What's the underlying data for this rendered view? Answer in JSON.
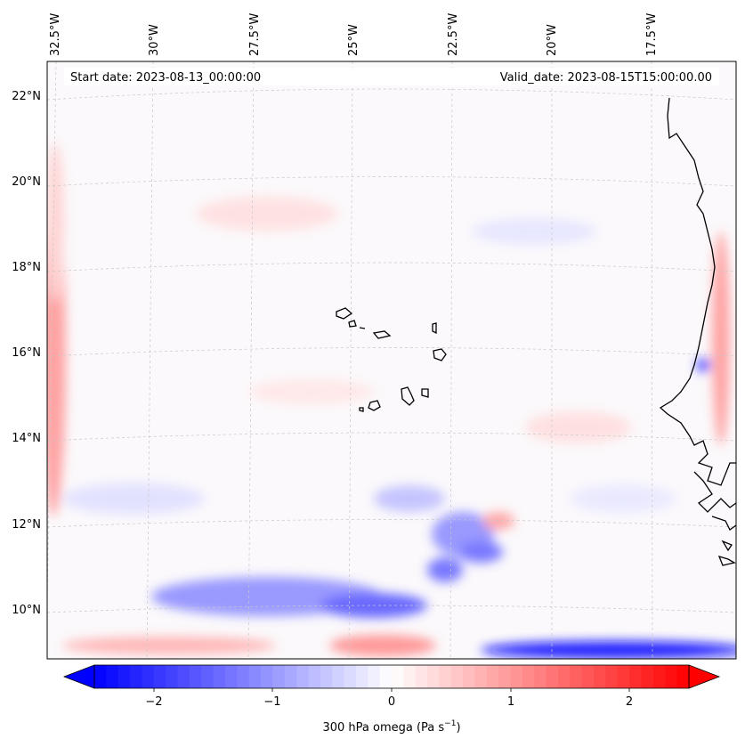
{
  "map": {
    "start_date": "Start date: 2023-08-13_00:00:00",
    "valid_date": "Valid_date: 2023-08-15T15:00:00.00",
    "lon_labels": [
      "32.5°W",
      "30°W",
      "27.5°W",
      "25°W",
      "22.5°W",
      "20°W",
      "17.5°W"
    ],
    "lat_labels": [
      "22°N",
      "20°N",
      "18°N",
      "16°N",
      "14°N",
      "12°N",
      "10°N"
    ],
    "colors": {
      "neg": "#0000ff",
      "pos": "#ff0000",
      "coast": "#000000",
      "grid": "#b0b0b0"
    }
  },
  "colorbar": {
    "ticks": [
      "−2",
      "−1",
      "0",
      "1",
      "2"
    ],
    "label": "300 hPa omega (Pa s",
    "label_sup": "−1",
    "label_end": ")",
    "range": [
      -2.5,
      2.5
    ]
  }
}
